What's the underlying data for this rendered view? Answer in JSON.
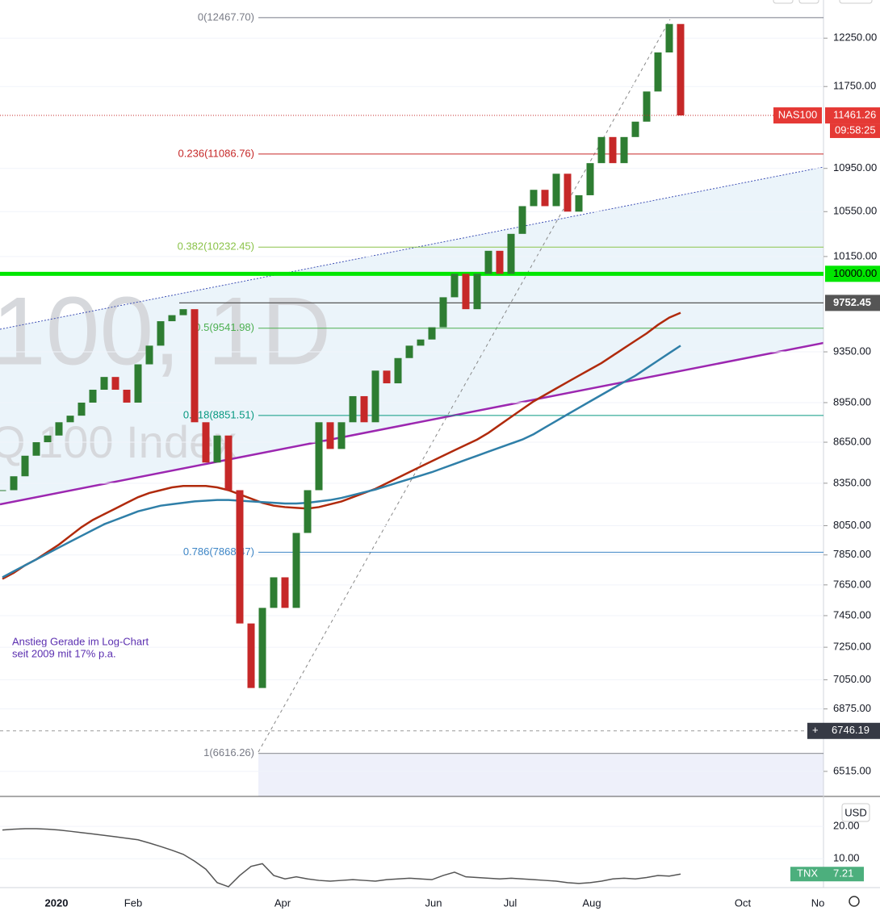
{
  "chart_data": [
    {
      "type": "candlestick",
      "log": true,
      "ylim": [
        6376,
        12659
      ],
      "yticks": [
        {
          "value": 6515,
          "label": "6515.00"
        },
        {
          "value": 6875,
          "label": "6875.00"
        },
        {
          "value": 7050,
          "label": "7050.00"
        },
        {
          "value": 7250,
          "label": "7250.00"
        },
        {
          "value": 7450,
          "label": "7450.00"
        },
        {
          "value": 7650,
          "label": "7650.00"
        },
        {
          "value": 7850,
          "label": "7850.00"
        },
        {
          "value": 8050,
          "label": "8050.00"
        },
        {
          "value": 8350,
          "label": "8350.00"
        },
        {
          "value": 8650,
          "label": "8650.00"
        },
        {
          "value": 8950,
          "label": "8950.00"
        },
        {
          "value": 9350,
          "label": "9350.00"
        },
        {
          "value": 10150,
          "label": "10150.00"
        },
        {
          "value": 10550,
          "label": "10550.00"
        },
        {
          "value": 10950,
          "label": "10950.00"
        },
        {
          "value": 11750,
          "label": "11750.00"
        },
        {
          "value": 12250,
          "label": "12250.00"
        }
      ],
      "watermark": [
        "100, 1D",
        "Q 100 Index"
      ],
      "annotation": [
        "Anstieg Gerade im Log-Chart",
        "seit 2009 mit 17% p.a."
      ],
      "time_labels": [
        "2020",
        "Feb",
        "Apr",
        "Jun",
        "Jul",
        "Aug",
        "Oct",
        "No"
      ],
      "levels": [
        {
          "value": 12467.7,
          "label": "0(12467.70)",
          "color": "#787b86"
        },
        {
          "value": 11086.76,
          "label": "0.236(11086.76)",
          "color": "#c62828"
        },
        {
          "value": 10232.45,
          "label": "0.382(10232.45)",
          "color": "#8bc34a"
        },
        {
          "value": 9541.98,
          "label": "0.5(9541.98)",
          "color": "#4caf50"
        },
        {
          "value": 8851.51,
          "label": "0.618(8851.51)",
          "color": "#089981"
        },
        {
          "value": 7868.47,
          "label": "0.786(7868.47)",
          "color": "#3d85c6"
        },
        {
          "value": 6616.26,
          "label": "1(6616.26)",
          "color": "#787b86"
        }
      ],
      "support": {
        "value": 10000,
        "label": "10000.00",
        "color": "#00e600"
      },
      "high_line": {
        "value": 9752.45,
        "color": "#555555"
      },
      "crosshair": {
        "value": 6746.19,
        "color": "#363a45"
      },
      "countdown": "09:58:25",
      "series": [
        {
          "name": "NAS100",
          "up_color": "#2e7d32",
          "down_color": "#c62828",
          "values": [
            8300,
            8400,
            8550,
            8650,
            8700,
            8800,
            8850,
            8950,
            9050,
            9150,
            9050,
            8950,
            9250,
            9400,
            9600,
            9650,
            9700,
            8800,
            8500,
            8700,
            8300,
            7400,
            7000,
            7500,
            7700,
            7500,
            8000,
            8300,
            8800,
            8600,
            8800,
            9000,
            8800,
            9200,
            9100,
            9300,
            9400,
            9450,
            9550,
            9800,
            10000,
            9700,
            10000,
            10200,
            10000,
            10350,
            10600,
            10750,
            10600,
            10900,
            10550,
            10700,
            11000,
            11250,
            11000,
            11250,
            11400,
            11700,
            12100,
            12400,
            11461.26
          ]
        },
        {
          "style": "line",
          "color": "#b02a0c",
          "values": [
            7690,
            7730,
            7780,
            7820,
            7870,
            7920,
            7980,
            8040,
            8090,
            8130,
            8170,
            8210,
            8250,
            8280,
            8300,
            8320,
            8330,
            8330,
            8330,
            8320,
            8300,
            8270,
            8240,
            8210,
            8190,
            8180,
            8175,
            8170,
            8180,
            8200,
            8220,
            8250,
            8280,
            8310,
            8350,
            8390,
            8430,
            8470,
            8510,
            8550,
            8590,
            8630,
            8670,
            8720,
            8780,
            8840,
            8900,
            8960,
            9010,
            9060,
            9110,
            9160,
            9210,
            9260,
            9320,
            9380,
            9440,
            9500,
            9570,
            9630,
            9670
          ]
        },
        {
          "style": "line",
          "color": "#2f7fa8",
          "values": [
            7700,
            7740,
            7780,
            7820,
            7860,
            7900,
            7940,
            7980,
            8020,
            8060,
            8090,
            8120,
            8150,
            8170,
            8190,
            8200,
            8210,
            8220,
            8225,
            8230,
            8230,
            8225,
            8220,
            8215,
            8210,
            8205,
            8205,
            8210,
            8220,
            8230,
            8245,
            8265,
            8285,
            8305,
            8330,
            8355,
            8380,
            8405,
            8430,
            8460,
            8490,
            8520,
            8550,
            8580,
            8610,
            8640,
            8670,
            8710,
            8760,
            8810,
            8860,
            8910,
            8960,
            9010,
            9060,
            9110,
            9160,
            9220,
            9280,
            9340,
            9400
          ]
        }
      ]
    },
    {
      "type": "line",
      "log": true,
      "currency": "USD",
      "ylim": [
        5.4,
        36
      ],
      "yticks": [
        {
          "value": 10,
          "label": "10.00"
        },
        {
          "value": 20,
          "label": "20.00"
        }
      ],
      "series": [
        {
          "name": "TNX",
          "color": "#555555",
          "tag_color": "#4caf7d",
          "values": [
            18.5,
            18.8,
            19,
            19,
            18.8,
            18.5,
            18,
            17.5,
            17,
            16.5,
            16,
            15.5,
            15,
            14,
            13,
            12,
            11,
            9.5,
            8,
            6,
            5.5,
            7,
            8.5,
            9,
            7,
            6.5,
            6.8,
            6.5,
            6.3,
            6.2,
            6.3,
            6.4,
            6.3,
            6.2,
            6.4,
            6.5,
            6.6,
            6.5,
            6.4,
            7,
            7.5,
            6.8,
            6.7,
            6.6,
            6.5,
            6.6,
            6.5,
            6.4,
            6.3,
            6.2,
            6.0,
            5.9,
            6.0,
            6.2,
            6.5,
            6.6,
            6.5,
            6.7,
            7.0,
            6.9,
            7.21
          ]
        }
      ]
    }
  ]
}
